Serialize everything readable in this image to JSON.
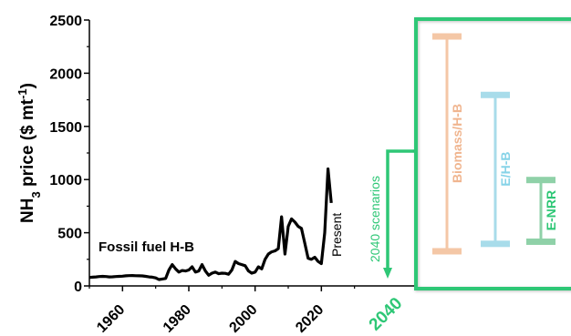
{
  "chart_data": {
    "type": "line",
    "ylabel": "NH3 price ($ mt-1)",
    "ylabel_parts": {
      "main": "NH",
      "sub": "3",
      "mid": " price ($ mt",
      "sup": "-1",
      "end": ")"
    },
    "ylim": [
      0,
      2500
    ],
    "yticks": [
      0,
      500,
      1000,
      1500,
      2000,
      2500
    ],
    "xlim": [
      1950,
      2030
    ],
    "xticks": [
      1960,
      1980,
      2000,
      2020
    ],
    "scenario_tick": "2040",
    "grid": false,
    "series": [
      {
        "x": [
          1950,
          1951,
          1952,
          1953,
          1954,
          1955,
          1956,
          1957,
          1958,
          1959,
          1960,
          1961,
          1962,
          1963,
          1964,
          1965,
          1966,
          1967,
          1968,
          1969,
          1970,
          1971,
          1972,
          1973,
          1974,
          1975,
          1976,
          1977,
          1978,
          1979,
          1980,
          1981,
          1982,
          1983,
          1984,
          1985,
          1986,
          1987,
          1988,
          1989,
          1990,
          1991,
          1992,
          1993,
          1994,
          1995,
          1996,
          1997,
          1998,
          1999,
          2000,
          2001,
          2002,
          2003,
          2004,
          2005,
          2006,
          2007,
          2008,
          2009,
          2010,
          2011,
          2012,
          2013,
          2014,
          2015,
          2016,
          2017,
          2018,
          2019,
          2020,
          2021,
          2022,
          2023
        ],
        "y": [
          80,
          82,
          85,
          88,
          90,
          88,
          85,
          86,
          88,
          90,
          92,
          95,
          97,
          98,
          96,
          95,
          94,
          90,
          85,
          82,
          75,
          60,
          65,
          70,
          150,
          200,
          160,
          130,
          145,
          140,
          150,
          180,
          130,
          140,
          200,
          140,
          100,
          120,
          130,
          115,
          120,
          118,
          110,
          150,
          230,
          210,
          200,
          190,
          140,
          120,
          130,
          180,
          160,
          250,
          300,
          320,
          330,
          350,
          650,
          300,
          560,
          630,
          600,
          560,
          540,
          400,
          260,
          250,
          270,
          230,
          210,
          500,
          1100,
          780
        ]
      }
    ],
    "annotations": {
      "fossil": "Fossil fuel H-B",
      "present": "Present",
      "scenarios": "2040 scenarios"
    },
    "scenario_bars": [
      {
        "name": "Biomass/H-B",
        "low": 330,
        "high": 2350,
        "color": "#f4c7a6"
      },
      {
        "name": "E/H-B",
        "low": 400,
        "high": 1800,
        "color": "#a8dcea"
      },
      {
        "name": "E-NRR",
        "low": 420,
        "high": 1000,
        "color": "#8fd1a8"
      }
    ],
    "colors": {
      "line": "#000000",
      "highlight": "#2ec776",
      "scenario_label_biomass": "#f0b58f",
      "scenario_label_eh": "#86d3e8",
      "scenario_label_enrr": "#2ec776"
    }
  }
}
